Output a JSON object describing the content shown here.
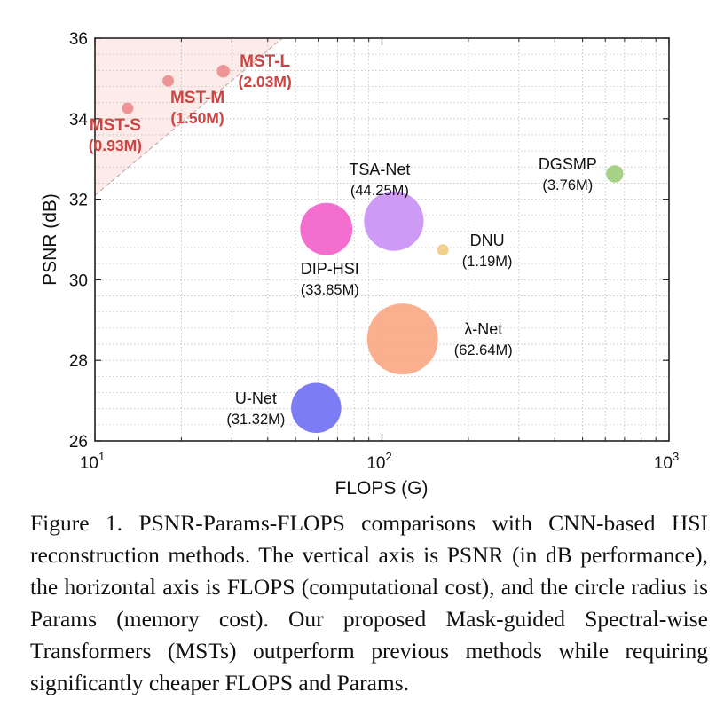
{
  "chart_data": {
    "type": "scatter",
    "xscale": "log",
    "xlabel": "FLOPS (G)",
    "ylabel": "PSNR (dB)",
    "xlim": [
      10,
      1000
    ],
    "ylim": [
      26,
      36
    ],
    "xticks": [
      10,
      100,
      1000
    ],
    "xtick_labels": [
      {
        "base": "10",
        "exp": "1"
      },
      {
        "base": "10",
        "exp": "2"
      },
      {
        "base": "10",
        "exp": "3"
      }
    ],
    "yticks": [
      26,
      28,
      30,
      32,
      34,
      36
    ],
    "ytick_labels": [
      "26",
      "28",
      "30",
      "32",
      "34",
      "36"
    ],
    "grid": true,
    "points": [
      {
        "name": "MST-S",
        "params": "(0.93M)",
        "flops": 13,
        "psnr": 34.26,
        "params_m": 0.93,
        "color": "#ee8f8f",
        "label_color": "#cc4444",
        "highlight": true
      },
      {
        "name": "MST-M",
        "params": "(1.50M)",
        "flops": 18,
        "psnr": 34.94,
        "params_m": 1.5,
        "color": "#ee8f8f",
        "label_color": "#cc4444",
        "highlight": true
      },
      {
        "name": "MST-L",
        "params": "(2.03M)",
        "flops": 28,
        "psnr": 35.18,
        "params_m": 2.03,
        "color": "#ee8f8f",
        "label_color": "#cc4444",
        "highlight": true
      },
      {
        "name": "TSA-Net",
        "params": "(44.25M)",
        "flops": 110,
        "psnr": 31.46,
        "params_m": 44.25,
        "color": "#c68cf5",
        "label_color": "#111111",
        "highlight": false
      },
      {
        "name": "DIP-HSI",
        "params": "(33.85M)",
        "flops": 64,
        "psnr": 31.26,
        "params_m": 33.85,
        "color": "#f05bc8",
        "label_color": "#111111",
        "highlight": false
      },
      {
        "name": "DNU",
        "params": "(1.19M)",
        "flops": 163,
        "psnr": 30.74,
        "params_m": 1.19,
        "color": "#f2cb7a",
        "label_color": "#111111",
        "highlight": false
      },
      {
        "name": "DGSMP",
        "params": "(3.76M)",
        "flops": 647,
        "psnr": 32.63,
        "params_m": 3.76,
        "color": "#9ccb78",
        "label_color": "#111111",
        "highlight": false
      },
      {
        "name": "λ-Net",
        "params": "(62.64M)",
        "flops": 118,
        "psnr": 28.53,
        "params_m": 62.64,
        "color": "#f9a47f",
        "label_color": "#111111",
        "highlight": false
      },
      {
        "name": "U-Net",
        "params": "(31.32M)",
        "flops": 59,
        "psnr": 26.82,
        "params_m": 31.32,
        "color": "#6a6af2",
        "label_color": "#111111",
        "highlight": false
      }
    ],
    "highlight_region": {
      "color": "#fbe4e0"
    }
  },
  "caption": "Figure 1.  PSNR-Params-FLOPS comparisons with CNN-based HSI reconstruction methods. The vertical axis is PSNR (in dB performance), the horizontal axis is FLOPS (computational cost), and the circle radius is Params (memory cost). Our proposed Mask-guided Spectral-wise Transformers (MSTs) outperform previous methods while requiring significantly cheaper FLOPS and Params."
}
